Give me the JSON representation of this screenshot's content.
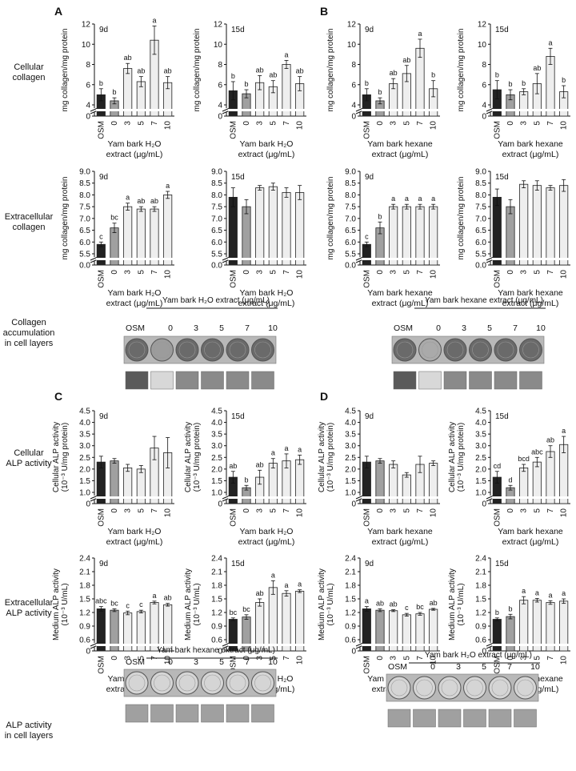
{
  "panel_letters": [
    "A",
    "B",
    "C",
    "D"
  ],
  "row_labels": {
    "cellular_collagen": "Cellular\ncollagen",
    "extracellular_collagen": "Extracellular\ncollagen",
    "collagen_layers": "Collagen\naccumulation\nin cell layers",
    "cellular_alp": "Cellular\nALP activity",
    "extracellular_alp": "Extracellular\nALP activity",
    "alp_layers": "ALP activity\nin cell layers"
  },
  "image_strips": [
    {
      "header": "Yam bark H₂O extract (μg/mL)",
      "labels": [
        "OSM",
        "0",
        "3",
        "5",
        "7",
        "10"
      ]
    },
    {
      "header": "Yam bark hexane extract (μg/mL)",
      "labels": [
        "OSM",
        "0",
        "3",
        "5",
        "7",
        "10"
      ]
    },
    {
      "header": "Yam bark hexane extract (μg/mL)",
      "labels": [
        "OSM",
        "0",
        "3",
        "5",
        "7",
        "10"
      ]
    },
    {
      "header": "Yam bark H₂O extract (μg/mL)",
      "labels": [
        "OSM",
        "0",
        "3",
        "5",
        "7",
        "10"
      ]
    }
  ],
  "colors": {
    "osm": "#222222",
    "control": "#a0a0a0",
    "treated": "#eeeeee"
  },
  "chart_data": [
    {
      "id": "A1",
      "type": "bar",
      "title": "9d",
      "categories": [
        "OSM",
        "0",
        "3",
        "5",
        "7",
        "10"
      ],
      "values": [
        5.0,
        4.4,
        7.6,
        6.3,
        10.4,
        6.2
      ],
      "errors": [
        0.6,
        0.3,
        0.5,
        0.5,
        1.4,
        0.6
      ],
      "letters": [
        "b",
        "b",
        "ab",
        "ab",
        "a",
        "ab"
      ],
      "ylabel": "mg collagen/mg protein",
      "xlabel": "Yam bark H₂O\nextract (μg/mL)",
      "ylim": [
        0,
        12
      ],
      "yticks": [
        "0",
        "4",
        "6",
        "8",
        "10",
        "12"
      ]
    },
    {
      "id": "A2",
      "type": "bar",
      "title": "15d",
      "categories": [
        "OSM",
        "0",
        "3",
        "5",
        "7",
        "10"
      ],
      "values": [
        5.4,
        5.1,
        6.2,
        5.8,
        8.0,
        6.1
      ],
      "errors": [
        0.9,
        0.4,
        0.7,
        0.6,
        0.4,
        0.7
      ],
      "letters": [
        "b",
        "b",
        "ab",
        "ab",
        "a",
        "ab"
      ],
      "ylabel": "mg collagen/mg protein",
      "xlabel": "Yam bark H₂O\nextract (μg/mL)",
      "ylim": [
        0,
        12
      ],
      "yticks": [
        "0",
        "4",
        "6",
        "8",
        "10",
        "12"
      ]
    },
    {
      "id": "B1",
      "type": "bar",
      "title": "9d",
      "categories": [
        "OSM",
        "0",
        "3",
        "5",
        "7",
        "10"
      ],
      "values": [
        5.0,
        4.4,
        6.1,
        7.1,
        9.6,
        5.6
      ],
      "errors": [
        0.6,
        0.3,
        0.5,
        0.8,
        0.9,
        0.8
      ],
      "letters": [
        "b",
        "b",
        "ab",
        "ab",
        "a",
        "b"
      ],
      "ylabel": "mg collagen/mg protein",
      "xlabel": "Yam bark hexane\nextract (μg/mL)",
      "ylim": [
        0,
        12
      ],
      "yticks": [
        "0",
        "4",
        "6",
        "8",
        "10",
        "12"
      ]
    },
    {
      "id": "B2",
      "type": "bar",
      "title": "15d",
      "categories": [
        "OSM",
        "0",
        "3",
        "5",
        "7",
        "10"
      ],
      "values": [
        5.5,
        5.0,
        5.3,
        6.1,
        8.8,
        5.3
      ],
      "errors": [
        0.9,
        0.5,
        0.3,
        1.0,
        0.8,
        0.6
      ],
      "letters": [
        "b",
        "b",
        "b",
        "ab",
        "a",
        "b"
      ],
      "ylabel": "mg collagen/mg protein",
      "xlabel": "Yam bark hexane\nextract (μg/mL)",
      "ylim": [
        0,
        12
      ],
      "yticks": [
        "0",
        "4",
        "6",
        "8",
        "10",
        "12"
      ]
    },
    {
      "id": "A3",
      "type": "bar",
      "title": "9d",
      "categories": [
        "OSM",
        "0",
        "3",
        "5",
        "7",
        "10"
      ],
      "values": [
        5.9,
        6.6,
        7.5,
        7.4,
        7.4,
        8.0
      ],
      "errors": [
        0.1,
        0.2,
        0.15,
        0.1,
        0.1,
        0.15
      ],
      "letters": [
        "c",
        "bc",
        "a",
        "ab",
        "ab",
        "a"
      ],
      "ylabel": "mg collagen/mg protein",
      "xlabel": "Yam bark H₂O\nextract (μg/mL)",
      "ylim": [
        0,
        9
      ],
      "yticks": [
        "0.0",
        "5.5",
        "6.0",
        "6.5",
        "7.0",
        "7.5",
        "8.0",
        "8.5",
        "9.0"
      ]
    },
    {
      "id": "A4",
      "type": "bar",
      "title": "15d",
      "categories": [
        "OSM",
        "0",
        "3",
        "5",
        "7",
        "10"
      ],
      "values": [
        7.9,
        7.5,
        8.3,
        8.35,
        8.1,
        8.1
      ],
      "errors": [
        0.4,
        0.3,
        0.1,
        0.15,
        0.2,
        0.3
      ],
      "letters": [
        "",
        "",
        "",
        "",
        "",
        ""
      ],
      "ylabel": "",
      "xlabel": "Yam bark H₂O\nextract (μg/mL)",
      "ylim": [
        0,
        9
      ],
      "yticks": [
        "0.0",
        "5.5",
        "6.0",
        "6.5",
        "7.0",
        "7.5",
        "8.0",
        "8.5",
        "9.0"
      ]
    },
    {
      "id": "B3",
      "type": "bar",
      "title": "9d",
      "categories": [
        "OSM",
        "0",
        "3",
        "5",
        "7",
        "10"
      ],
      "values": [
        5.9,
        6.6,
        7.5,
        7.5,
        7.5,
        7.5
      ],
      "errors": [
        0.1,
        0.25,
        0.1,
        0.1,
        0.1,
        0.1
      ],
      "letters": [
        "c",
        "b",
        "a",
        "a",
        "a",
        "a"
      ],
      "ylabel": "mg collagen/mg protein",
      "xlabel": "Yam bark hexane\nextract (μg/mL)",
      "ylim": [
        0,
        9
      ],
      "yticks": [
        "0.0",
        "5.5",
        "6.0",
        "6.5",
        "7.0",
        "7.5",
        "8.0",
        "8.5",
        "9.0"
      ]
    },
    {
      "id": "B4",
      "type": "bar",
      "title": "15d",
      "categories": [
        "OSM",
        "0",
        "3",
        "5",
        "7",
        "10"
      ],
      "values": [
        7.9,
        7.5,
        8.45,
        8.4,
        8.3,
        8.4
      ],
      "errors": [
        0.35,
        0.3,
        0.15,
        0.2,
        0.1,
        0.25
      ],
      "letters": [
        "",
        "",
        "",
        "",
        "",
        ""
      ],
      "ylabel": "mg collagen/mg protein",
      "xlabel": "Yam bark hexane\nextract (μg/mL)",
      "ylim": [
        0,
        9
      ],
      "yticks": [
        "0.0",
        "5.5",
        "6.0",
        "6.5",
        "7.0",
        "7.5",
        "8.0",
        "8.5",
        "9.0"
      ]
    },
    {
      "id": "C1",
      "type": "bar",
      "title": "9d",
      "categories": [
        "OSM",
        "0",
        "3",
        "5",
        "7",
        "10"
      ],
      "values": [
        2.3,
        2.35,
        2.05,
        2.0,
        2.9,
        2.7
      ],
      "errors": [
        0.25,
        0.1,
        0.15,
        0.15,
        0.5,
        0.65
      ],
      "letters": [
        "",
        "",
        "",
        "",
        "",
        ""
      ],
      "ylabel": "Cellular ALP activity\n(10⁻³ U/mg protein)",
      "xlabel": "Yam bark H₂O\nextract (μg/mL)",
      "ylim": [
        0,
        4.5
      ],
      "yticks": [
        "0",
        "1.0",
        "1.5",
        "2.0",
        "2.5",
        "3.0",
        "3.5",
        "4.0",
        "4.5"
      ]
    },
    {
      "id": "C2",
      "type": "bar",
      "title": "15d",
      "categories": [
        "OSM",
        "0",
        "3",
        "5",
        "7",
        "10"
      ],
      "values": [
        1.65,
        1.2,
        1.65,
        2.25,
        2.35,
        2.4
      ],
      "errors": [
        0.25,
        0.1,
        0.3,
        0.2,
        0.3,
        0.2
      ],
      "letters": [
        "ab",
        "b",
        "ab",
        "a",
        "a",
        "a"
      ],
      "ylabel": "Cellular ALP activity\n(10⁻³ U/mg protein)",
      "xlabel": "Yam bark H₂O\nextract (μg/mL)",
      "ylim": [
        0,
        4.5
      ],
      "yticks": [
        "0",
        "1.0",
        "1.5",
        "2.0",
        "2.5",
        "3.0",
        "3.5",
        "4.0",
        "4.5"
      ]
    },
    {
      "id": "D1",
      "type": "bar",
      "title": "9d",
      "categories": [
        "OSM",
        "0",
        "3",
        "5",
        "7",
        "10"
      ],
      "values": [
        2.3,
        2.35,
        2.2,
        1.75,
        2.2,
        2.25
      ],
      "errors": [
        0.25,
        0.1,
        0.15,
        0.1,
        0.35,
        0.1
      ],
      "letters": [
        "",
        "",
        "",
        "",
        "",
        ""
      ],
      "ylabel": "Cellular ALP activity\n(10⁻³ U/mg protein)",
      "xlabel": "Yam bark hexane\nextract (μg/mL)",
      "ylim": [
        0,
        4.5
      ],
      "yticks": [
        "0",
        "1.0",
        "1.5",
        "2.0",
        "2.5",
        "3.0",
        "3.5",
        "4.0",
        "4.5"
      ]
    },
    {
      "id": "D2",
      "type": "bar",
      "title": "15d",
      "categories": [
        "OSM",
        "0",
        "3",
        "5",
        "7",
        "10"
      ],
      "values": [
        1.65,
        1.2,
        2.05,
        2.3,
        2.75,
        3.05
      ],
      "errors": [
        0.25,
        0.1,
        0.15,
        0.2,
        0.25,
        0.35
      ],
      "letters": [
        "cd",
        "d",
        "bcd",
        "abc",
        "ab",
        "a"
      ],
      "ylabel": "Cellular ALP activity\n(10⁻³ U/mg protein)",
      "xlabel": "Yam bark hexane\nextract (μg/mL)",
      "ylim": [
        0,
        4.5
      ],
      "yticks": [
        "0",
        "1.0",
        "1.5",
        "2.0",
        "2.5",
        "3.0",
        "3.5",
        "4.0",
        "4.5"
      ]
    },
    {
      "id": "C3",
      "type": "bar",
      "title": "9d",
      "categories": [
        "OSM",
        "0",
        "3",
        "5",
        "7",
        "10"
      ],
      "values": [
        1.28,
        1.25,
        1.19,
        1.22,
        1.42,
        1.37
      ],
      "errors": [
        0.05,
        0.03,
        0.04,
        0.03,
        0.03,
        0.03
      ],
      "letters": [
        "abc",
        "bc",
        "c",
        "c",
        "a",
        "ab"
      ],
      "ylabel": "Medium ALP activity\n(10⁻³ U/mL)",
      "xlabel": "Yam bark H₂O\nextract (μg/mL)",
      "ylim": [
        0,
        2.4
      ],
      "yticks": [
        "0",
        "0.6",
        "0.9",
        "1.2",
        "1.5",
        "1.8",
        "2.1",
        "2.4"
      ]
    },
    {
      "id": "C4",
      "type": "bar",
      "title": "15d",
      "categories": [
        "OSM",
        "0",
        "3",
        "5",
        "7",
        "10"
      ],
      "values": [
        1.05,
        1.1,
        1.42,
        1.75,
        1.62,
        1.67
      ],
      "errors": [
        0.03,
        0.05,
        0.08,
        0.15,
        0.06,
        0.03
      ],
      "letters": [
        "bc",
        "bc",
        "ab",
        "a",
        "a",
        "a"
      ],
      "ylabel": "Medium ALP activity\n(10⁻³ U/mL)",
      "xlabel": "Yam bark H₂O\nextract (μg/mL)",
      "ylim": [
        0,
        2.4
      ],
      "yticks": [
        "0",
        "0.6",
        "0.9",
        "1.2",
        "1.5",
        "1.8",
        "2.1",
        "2.4"
      ]
    },
    {
      "id": "D3",
      "type": "bar",
      "title": "9d",
      "categories": [
        "OSM",
        "0",
        "3",
        "5",
        "7",
        "10"
      ],
      "values": [
        1.28,
        1.25,
        1.24,
        1.15,
        1.17,
        1.27
      ],
      "errors": [
        0.05,
        0.03,
        0.02,
        0.03,
        0.03,
        0.02
      ],
      "letters": [
        "a",
        "ab",
        "ab",
        "c",
        "bc",
        "ab"
      ],
      "ylabel": "Medium ALP activity\n(10⁻³ U/mL)",
      "xlabel": "Yam bark hexane\nextract (μg/mL)",
      "ylim": [
        0,
        2.4
      ],
      "yticks": [
        "0",
        "0.6",
        "0.9",
        "1.2",
        "1.5",
        "1.8",
        "2.1",
        "2.4"
      ]
    },
    {
      "id": "D4",
      "type": "bar",
      "title": "15d",
      "categories": [
        "OSM",
        "0",
        "3",
        "5",
        "7",
        "10"
      ],
      "values": [
        1.05,
        1.11,
        1.47,
        1.47,
        1.42,
        1.45
      ],
      "errors": [
        0.03,
        0.05,
        0.08,
        0.04,
        0.04,
        0.05
      ],
      "letters": [
        "b",
        "b",
        "a",
        "a",
        "a",
        "a"
      ],
      "ylabel": "Medium ALP activity\n(10⁻³ U/mL)",
      "xlabel": "Yam bark hexane\nextract (μg/mL)",
      "ylim": [
        0,
        2.4
      ],
      "yticks": [
        "0",
        "0.6",
        "0.9",
        "1.2",
        "1.5",
        "1.8",
        "2.1",
        "2.4"
      ]
    }
  ]
}
